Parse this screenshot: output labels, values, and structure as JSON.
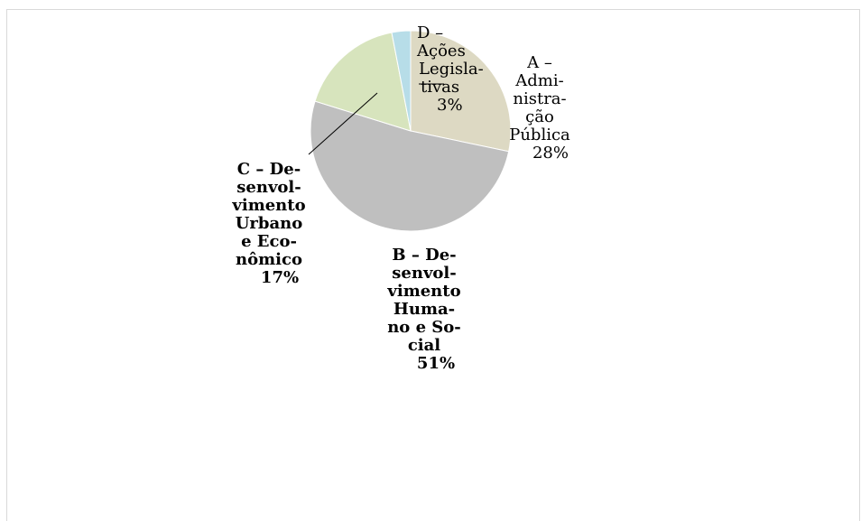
{
  "chart_data": {
    "type": "pie",
    "title": "",
    "slices": [
      {
        "key": "A",
        "label_lines": [
          "A –",
          "Admi-",
          "nistra-",
          "ção",
          "Pública"
        ],
        "percent_label": "28%",
        "value": 28,
        "color": "#ddd9c3"
      },
      {
        "key": "B",
        "label_lines": [
          "B – De-",
          "senvol-",
          "vimento",
          "Huma-",
          "no e So-",
          "cial"
        ],
        "percent_label": "51%",
        "value": 51,
        "color": "#bfbfbf"
      },
      {
        "key": "C",
        "label_lines": [
          "C – De-",
          "senvol-",
          "vimento",
          "Urbano",
          "e Eco-",
          "nômico"
        ],
        "percent_label": "17%",
        "value": 17,
        "color": "#d7e4bd"
      },
      {
        "key": "D",
        "label_lines": [
          "D –",
          "Ações",
          "Legisla-",
          "tivas"
        ],
        "percent_label": "3%",
        "value": 3,
        "color": "#b7dde8"
      }
    ],
    "start_angle_deg": 0,
    "direction": "clockwise",
    "legend": "none"
  }
}
